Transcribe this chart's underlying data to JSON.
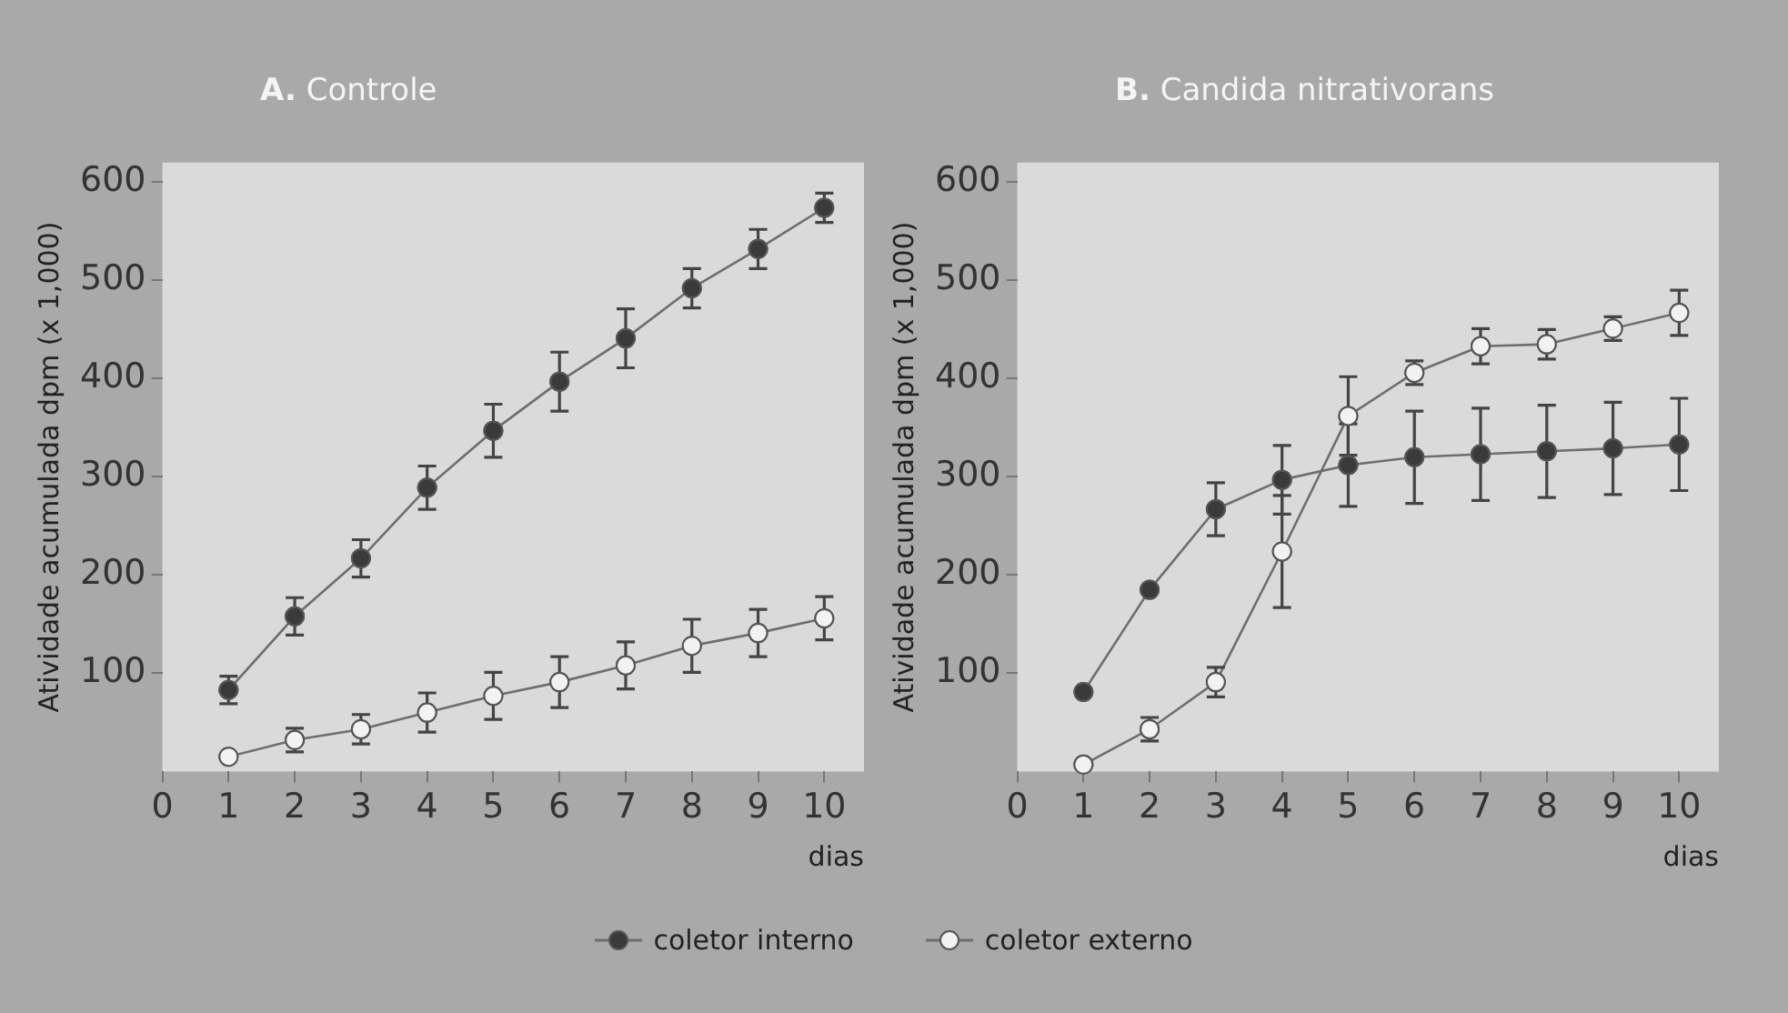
{
  "chart_data": [
    {
      "type": "line",
      "title": "A. Controle",
      "xlabel": "dias",
      "ylabel": "Atividade acumulada dpm (x 1,000)",
      "x": [
        1,
        2,
        3,
        4,
        5,
        6,
        7,
        8,
        9,
        10
      ],
      "xlim": [
        0,
        10.6
      ],
      "xticks": [
        0,
        1,
        2,
        3,
        4,
        5,
        6,
        7,
        8,
        9,
        10
      ],
      "ylim": [
        0,
        620
      ],
      "yticks": [
        100,
        200,
        300,
        400,
        500,
        600
      ],
      "grid": false,
      "legend": "bottom",
      "marker": "circle",
      "line_style": "solid",
      "series": [
        {
          "name": "coletor interno",
          "color": "#3a3a3a",
          "values": [
            83,
            158,
            217,
            289,
            347,
            397,
            441,
            492,
            532,
            574
          ],
          "errors": [
            14,
            19,
            19,
            22,
            27,
            30,
            30,
            20,
            20,
            15
          ]
        },
        {
          "name": "coletor externo",
          "color": "#f2f2f2",
          "values": [
            15,
            32,
            43,
            60,
            77,
            91,
            108,
            128,
            141,
            156
          ],
          "errors": [
            null,
            12,
            15,
            20,
            24,
            26,
            24,
            27,
            24,
            22
          ]
        }
      ]
    },
    {
      "type": "line",
      "title": "B. Candida nitrativorans",
      "xlabel": "dias",
      "ylabel": "Atividade acumulada dpm (x 1,000)",
      "x": [
        1,
        2,
        3,
        4,
        5,
        6,
        7,
        8,
        9,
        10
      ],
      "xlim": [
        0,
        10.6
      ],
      "xticks": [
        0,
        1,
        2,
        3,
        4,
        5,
        6,
        7,
        8,
        9,
        10
      ],
      "ylim": [
        0,
        620
      ],
      "yticks": [
        100,
        200,
        300,
        400,
        500,
        600
      ],
      "grid": false,
      "legend": "bottom",
      "marker": "circle",
      "line_style": "solid",
      "series": [
        {
          "name": "coletor interno",
          "color": "#3a3a3a",
          "values": [
            81,
            185,
            267,
            297,
            312,
            320,
            323,
            326,
            329,
            333
          ],
          "errors": [
            null,
            null,
            27,
            35,
            42,
            47,
            47,
            47,
            47,
            47
          ]
        },
        {
          "name": "coletor externo",
          "color": "#f2f2f2",
          "values": [
            7,
            43,
            91,
            224,
            362,
            406,
            433,
            435,
            451,
            467
          ],
          "errors": [
            null,
            12,
            15,
            57,
            40,
            12,
            18,
            15,
            12,
            23
          ]
        }
      ]
    }
  ]
}
